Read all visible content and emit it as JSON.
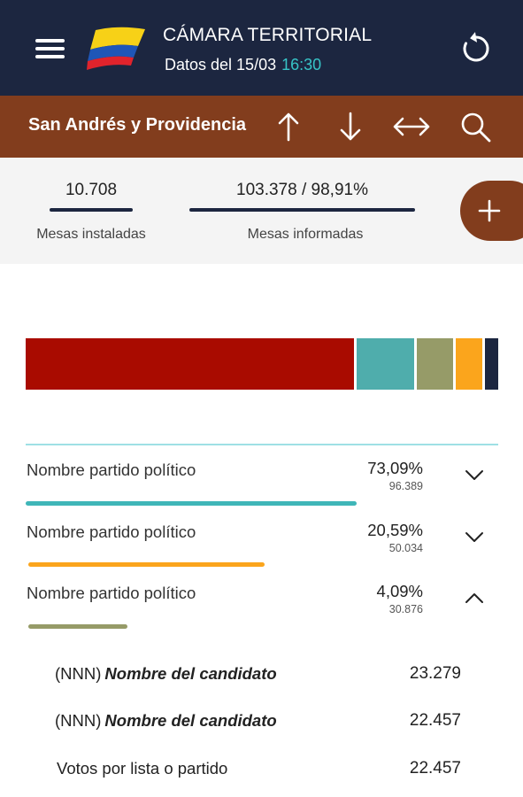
{
  "header": {
    "title": "CÁMARA TERRITORIAL",
    "subtitle": "Datos del 15/03",
    "time": "16:30",
    "time_color": "#37c4c7",
    "background_color": "#1c2640",
    "menu_icon": "hamburger-menu-icon",
    "logo": "colombia-flag-logo",
    "refresh_icon": "refresh-icon"
  },
  "region": {
    "name": "San Andrés y Providencia",
    "background_color": "#823d1d",
    "icons": [
      "arrow-up-icon",
      "arrow-down-icon",
      "arrows-horizontal-icon",
      "search-icon"
    ]
  },
  "stats": {
    "mesas_instaladas": {
      "value": "10.708",
      "label": "Mesas instaladas"
    },
    "mesas_informadas": {
      "value": "103.378 / 98,91%",
      "label": "Mesas informadas"
    },
    "plus_icon": "plus-icon"
  },
  "distribution_bar": {
    "segments": [
      {
        "color": "#a90b00",
        "percent": 70
      },
      {
        "color": "#4fadac",
        "percent": 12.3
      },
      {
        "color": "#969b68",
        "percent": 7.8
      },
      {
        "color": "#fba51c",
        "percent": 5.6
      },
      {
        "color": "#1c2640",
        "percent": 2.8
      }
    ]
  },
  "parties": [
    {
      "name": "Nombre partido político",
      "percent": "73,09%",
      "votes": "96.389",
      "bar_color": "#3fb6b8",
      "bar_fraction": 0.7,
      "expanded": false,
      "chevron_icon": "chevron-down-icon"
    },
    {
      "name": "Nombre partido político",
      "percent": "20,59%",
      "votes": "50.034",
      "bar_color": "#fba51c",
      "bar_fraction": 0.5,
      "expanded": false,
      "chevron_icon": "chevron-down-icon"
    },
    {
      "name": "Nombre partido político",
      "percent": "4,09%",
      "votes": "30.876",
      "bar_color": "#969b68",
      "bar_fraction": 0.21,
      "expanded": true,
      "chevron_icon": "chevron-up-icon"
    }
  ],
  "candidates": [
    {
      "code": "(NNN)",
      "name": "Nombre del candidato",
      "votes": "23.279"
    },
    {
      "code": "(NNN)",
      "name": "Nombre del candidato",
      "votes": "22.457"
    },
    {
      "label": "Votos por lista o partido",
      "votes": "22.457"
    }
  ]
}
